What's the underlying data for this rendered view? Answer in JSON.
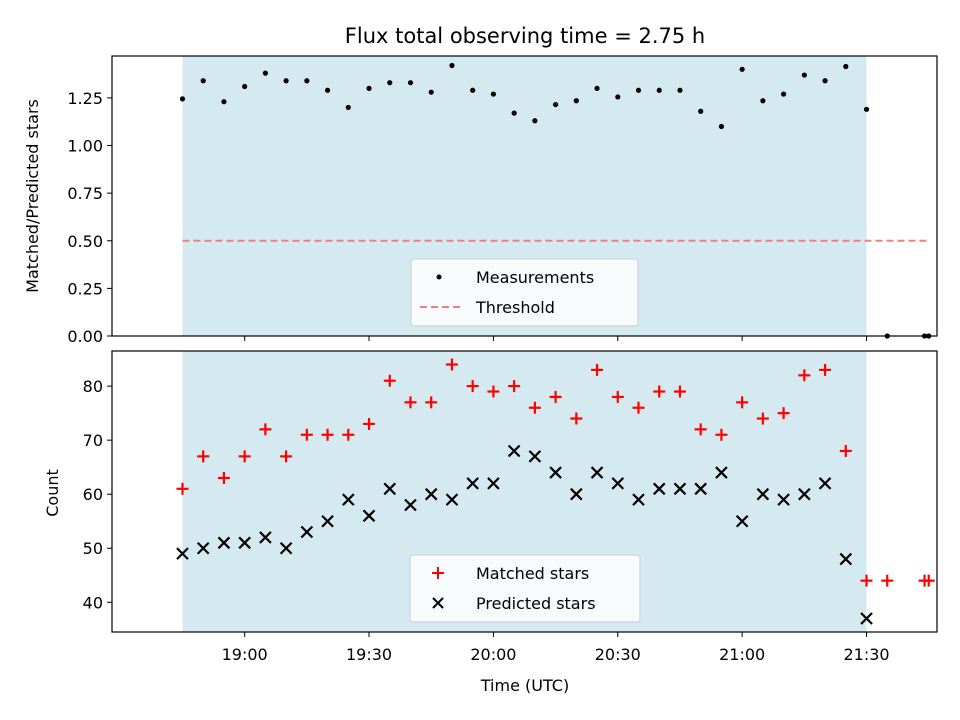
{
  "chart_data": [
    {
      "type": "scatter",
      "title": "Flux total observing time = 2.75 h",
      "xlabel": "",
      "ylabel": "Matched/Predicted stars",
      "ylim": [
        0,
        1.47
      ],
      "yticks": [
        0.0,
        0.25,
        0.5,
        0.75,
        1.0,
        1.25
      ],
      "ytick_labels": [
        "0.00",
        "0.25",
        "0.50",
        "0.75",
        "1.00",
        "1.25"
      ],
      "xlim_minutes": [
        1108,
        1307
      ],
      "xticks_minutes": [
        1140,
        1170,
        1200,
        1230,
        1260,
        1290
      ],
      "observing_window_minutes": [
        1125,
        1290
      ],
      "shade_color": "#d4eaf0",
      "series": [
        {
          "name": "Measurements",
          "marker": "dot",
          "color": "#000000",
          "x": [
            1125,
            1130,
            1135,
            1140,
            1145,
            1150,
            1155,
            1160,
            1165,
            1170,
            1175,
            1180,
            1185,
            1190,
            1195,
            1200,
            1205,
            1210,
            1215,
            1220,
            1225,
            1230,
            1235,
            1240,
            1245,
            1250,
            1255,
            1260,
            1265,
            1270,
            1275,
            1280,
            1285,
            1290,
            1295,
            1304,
            1305
          ],
          "y": [
            1.245,
            1.34,
            1.23,
            1.31,
            1.38,
            1.34,
            1.34,
            1.29,
            1.2,
            1.3,
            1.33,
            1.33,
            1.28,
            1.42,
            1.29,
            1.27,
            1.17,
            1.13,
            1.215,
            1.235,
            1.3,
            1.255,
            1.29,
            1.29,
            1.29,
            1.18,
            1.1,
            1.4,
            1.235,
            1.27,
            1.37,
            1.34,
            1.415,
            1.19,
            0.0,
            0.0,
            0.0
          ]
        }
      ],
      "threshold": {
        "name": "Threshold",
        "value": 0.5,
        "x_range_minutes": [
          1125,
          1305
        ],
        "color": "#f08080"
      },
      "legend": {
        "placement": "lower-center",
        "entries": [
          "Measurements",
          "Threshold"
        ]
      }
    },
    {
      "type": "scatter",
      "title": "",
      "xlabel": "Time (UTC)",
      "ylabel": "Count",
      "ylim": [
        34.5,
        86.5
      ],
      "yticks": [
        40,
        50,
        60,
        70,
        80
      ],
      "ytick_labels": [
        "40",
        "50",
        "60",
        "70",
        "80"
      ],
      "xlim_minutes": [
        1108,
        1307
      ],
      "xticks_minutes": [
        1140,
        1170,
        1200,
        1230,
        1260,
        1290
      ],
      "xtick_labels": [
        "19:00",
        "19:30",
        "20:00",
        "20:30",
        "21:00",
        "21:30"
      ],
      "observing_window_minutes": [
        1125,
        1290
      ],
      "shade_color": "#d4eaf0",
      "series": [
        {
          "name": "Matched stars",
          "marker": "plus",
          "color": "#ff0000",
          "x": [
            1125,
            1130,
            1135,
            1140,
            1145,
            1150,
            1155,
            1160,
            1165,
            1170,
            1175,
            1180,
            1185,
            1190,
            1195,
            1200,
            1205,
            1210,
            1215,
            1220,
            1225,
            1230,
            1235,
            1240,
            1245,
            1250,
            1255,
            1260,
            1265,
            1270,
            1275,
            1280,
            1285,
            1290,
            1295,
            1304,
            1305
          ],
          "y": [
            61,
            67,
            63,
            67,
            72,
            67,
            71,
            71,
            71,
            73,
            81,
            77,
            77,
            84,
            80,
            79,
            80,
            76,
            78,
            74,
            83,
            78,
            76,
            79,
            79,
            72,
            71,
            77,
            74,
            75,
            82,
            83,
            68,
            44,
            44,
            44,
            44
          ]
        },
        {
          "name": "Predicted stars",
          "marker": "x",
          "color": "#000000",
          "x": [
            1125,
            1130,
            1135,
            1140,
            1145,
            1150,
            1155,
            1160,
            1165,
            1170,
            1175,
            1180,
            1185,
            1190,
            1195,
            1200,
            1205,
            1210,
            1215,
            1220,
            1225,
            1230,
            1235,
            1240,
            1245,
            1250,
            1255,
            1260,
            1265,
            1270,
            1275,
            1280,
            1285,
            1290
          ],
          "y": [
            49,
            50,
            51,
            51,
            52,
            50,
            53,
            55,
            59,
            56,
            61,
            58,
            60,
            59,
            62,
            62,
            68,
            67,
            64,
            60,
            64,
            62,
            59,
            61,
            61,
            61,
            64,
            55,
            60,
            59,
            60,
            62,
            48,
            37
          ]
        }
      ],
      "legend": {
        "placement": "lower-center",
        "entries": [
          "Matched stars",
          "Predicted stars"
        ]
      }
    }
  ]
}
